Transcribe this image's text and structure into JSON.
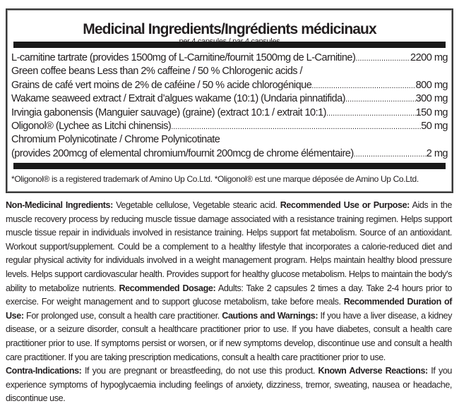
{
  "medicinal": {
    "title": "Medicinal Ingredients/Ingrédients médicinaux",
    "subtitle": "per 4 capsules / par 4 capsules",
    "ingredients": [
      {
        "name": "L-carnitine tartrate (provides 1500mg of L-Carnitine/fournit 1500mg de L-Carnitine)",
        "amount": "2200 mg"
      },
      {
        "name": "Green coffee beans Less than 2% caffeine / 50 % Chlorogenic acids /",
        "amount": ""
      },
      {
        "name": "Grains de café vert moins de 2% de caféine / 50 % acide chlorogénique",
        "amount": "800 mg"
      },
      {
        "name": "Wakame seaweed extract / Extrait d’algues wakame (10:1) (Undaria pinnatifida)",
        "amount": "300 mg"
      },
      {
        "name": "Irvingia gabonensis (Manguier sauvage) (graine) (extract 10:1 / extrait 10:1)",
        "amount": "150 mg"
      },
      {
        "name": "Oligonol® (Lychee as Litchi chinensis)",
        "amount": "50 mg"
      },
      {
        "name": "Chromium Polynicotinate / Chrome Polynicotinate",
        "amount": ""
      },
      {
        "name": "(provides 200mcg of elemental chromium/fournit 200mcg de chrome élémentaire)",
        "amount": "2 mg"
      }
    ],
    "footnote": "*Oligonol® is a registered trademark of Amino Up Co.Ltd. *Oligonol® est une marque déposée de Amino Up Co.Ltd."
  },
  "sections": [
    {
      "label": "Non-Medicinal Ingredients:",
      "text": " Vegetable cellulose, Vegetable stearic acid. "
    },
    {
      "label": "Recommended Use or Purpose:",
      "text": " Aids in the muscle recovery process by reducing muscle tissue damage associated with a resistance training regimen. Helps support muscle tissue repair in individuals involved in resistance training. Helps support fat metabolism. Source of an antioxidant. Workout support/supplement. Could be a complement to a healthy lifestyle that incorporates a calorie-reduced diet and regular physical activity for individuals involved in a weight management program. Helps maintain healthy blood pressure levels. Helps support cardiovascular health. Provides support for healthy glucose metabolism. Helps to maintain the body's ability to metabolize nutrients. "
    },
    {
      "label": "Recommended Dosage:",
      "text": " Adults: Take 2 capsules 2 times a day. Take 2-4 hours prior to exercise. For weight management and to support glucose metabolism, take before meals. "
    },
    {
      "label": "Recommended Duration of Use:",
      "text": " For prolonged use, consult a health care practitioner. "
    },
    {
      "label": "Cautions and Warnings:",
      "text": " If you have a liver disease, a kidney disease, or a seizure disorder, consult a healthcare practitioner prior to use. If you have diabetes, consult a health care practitioner prior to use. If symptoms persist or worsen, or if new symptoms develop, discontinue use and consult a health care practitioner. If you are taking prescription medications, consult a health care practitioner prior to use. "
    },
    {
      "label": "Contra-Indications:",
      "text": " If you are pregnant or breastfeeding, do not use this product. "
    },
    {
      "label": "Known Adverse Reactions:",
      "text": " If you experience symptoms of hypoglycaemia including feelings of anxiety, dizziness, tremor, sweating, nausea or headache, discontinue use."
    }
  ]
}
